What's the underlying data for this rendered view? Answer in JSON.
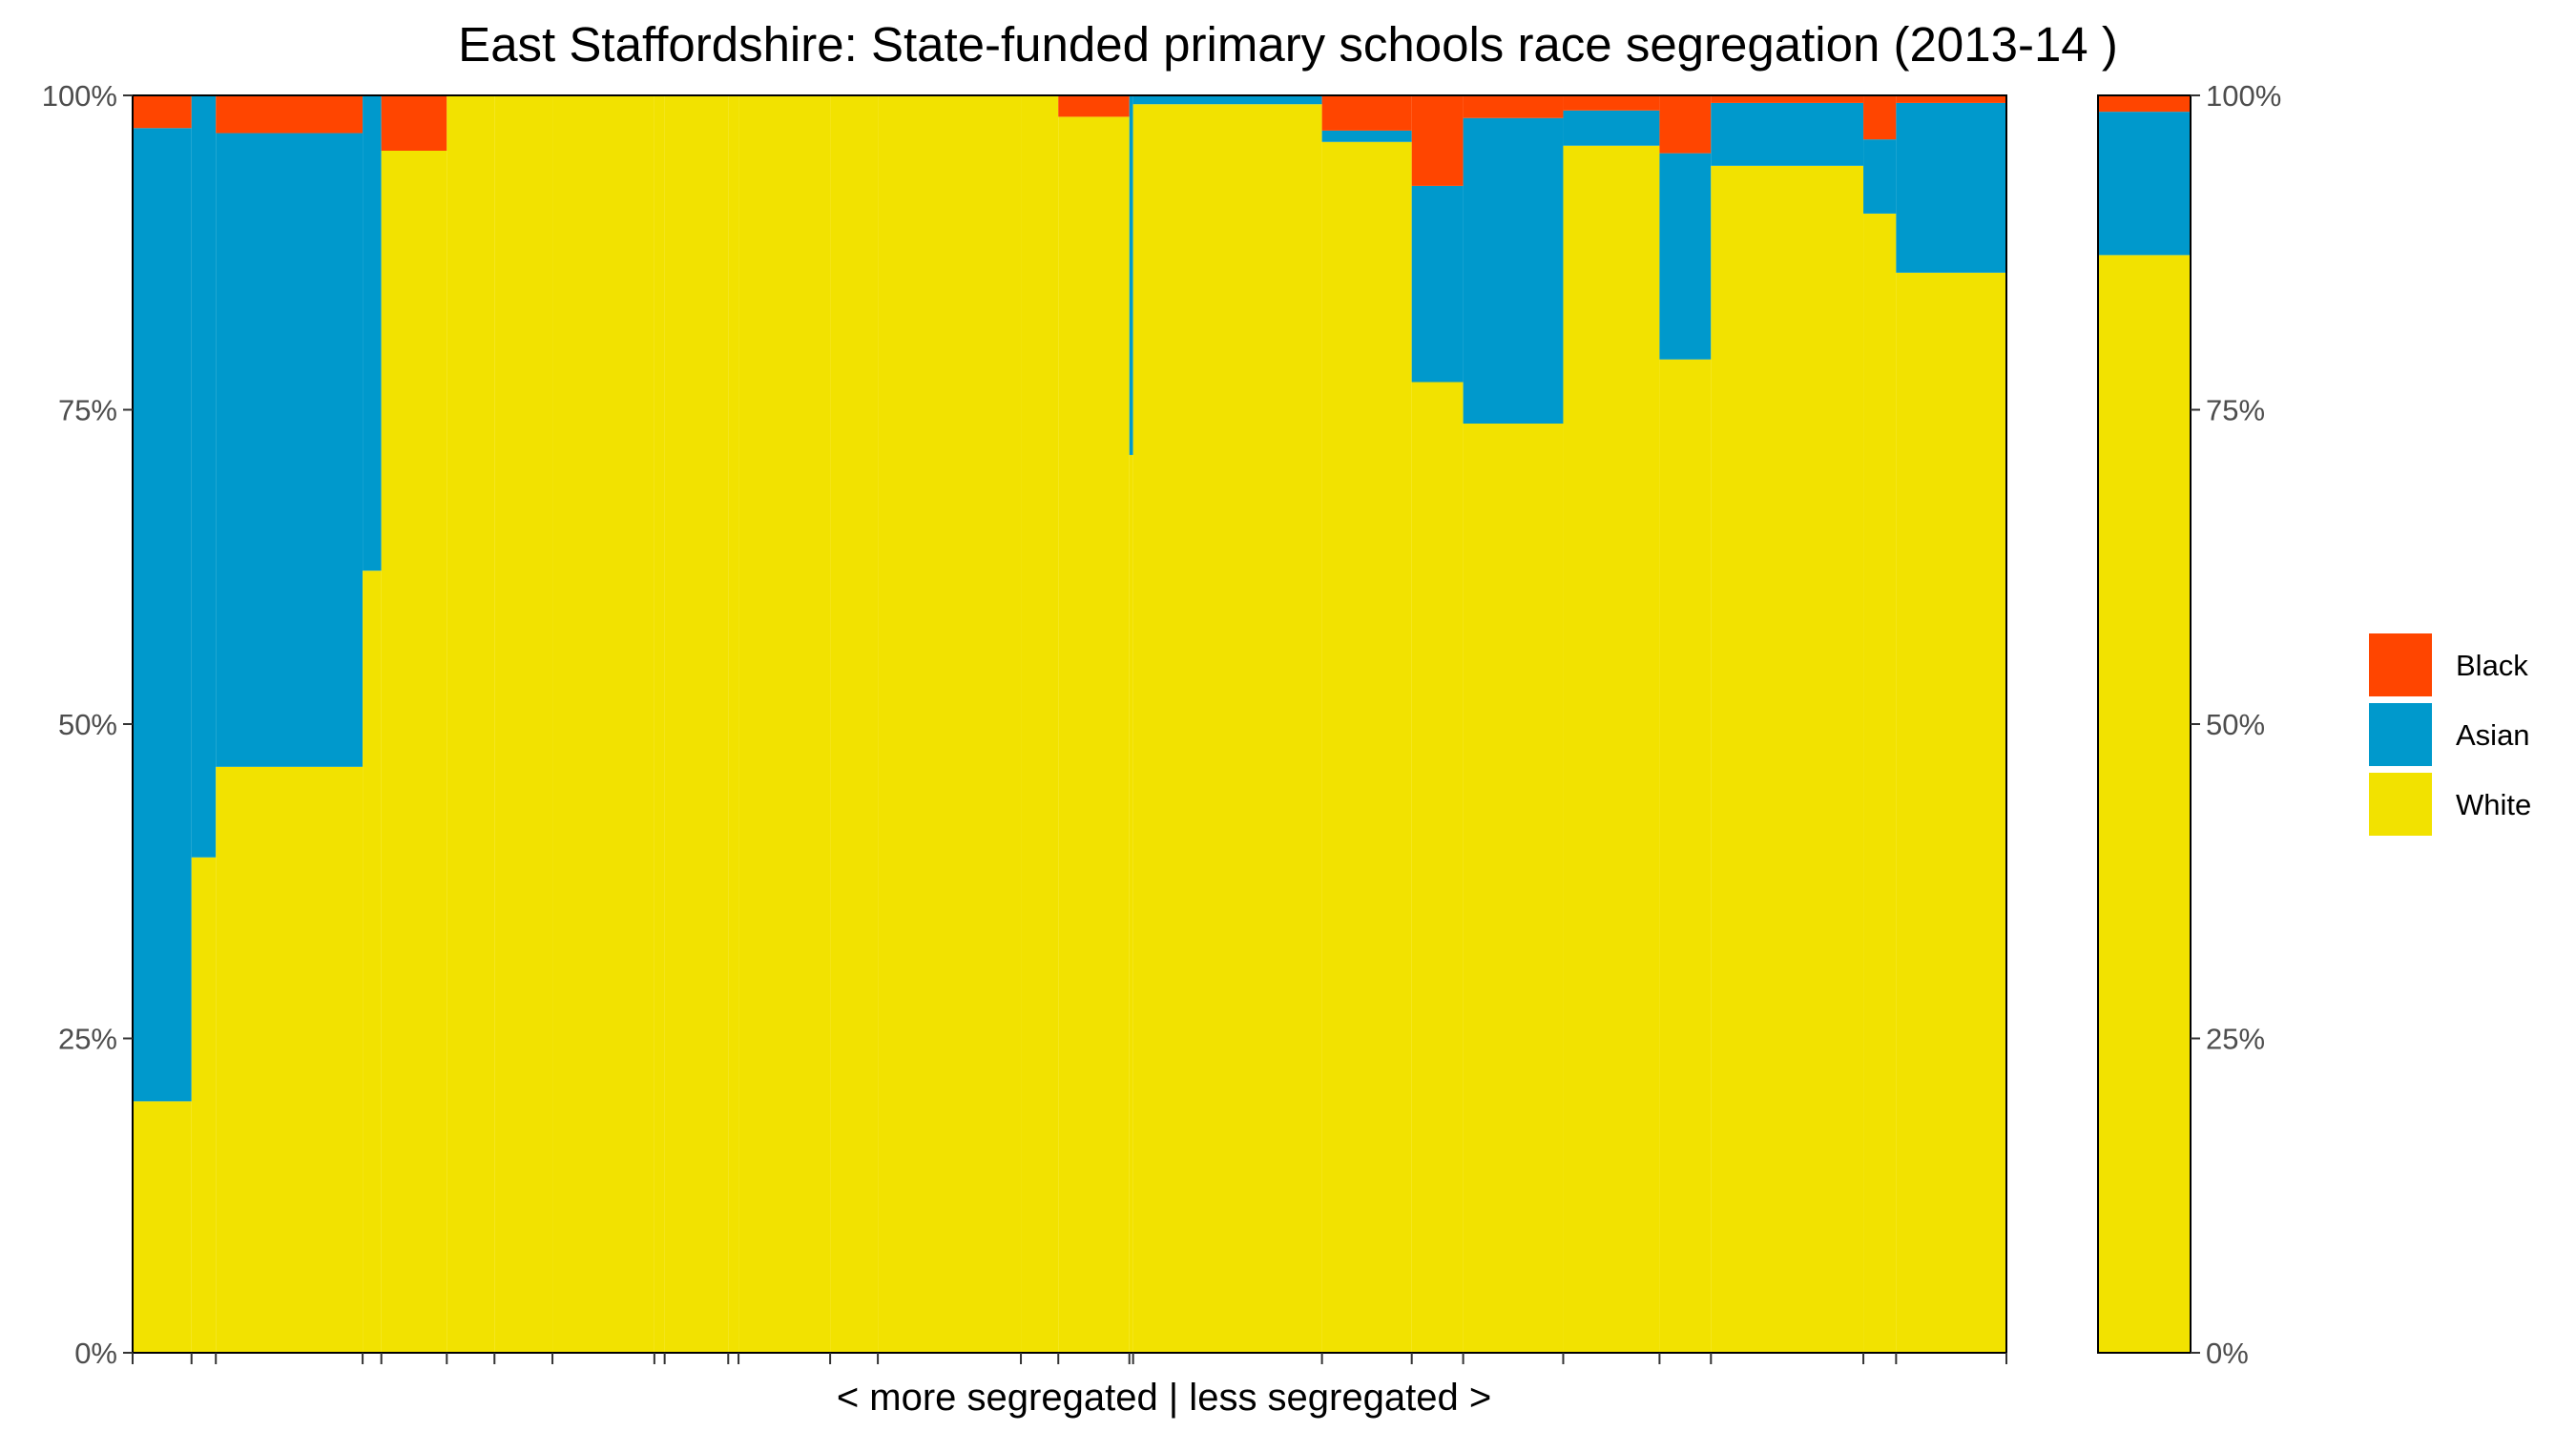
{
  "chart_data": {
    "type": "bar",
    "variant": "stacked-proportional-variable-width",
    "title": "East Staffordshire: State-funded primary schools race segregation (2013-14 )",
    "xlabel": "< more segregated | less segregated >",
    "ylabel": "",
    "ylim": [
      0,
      100
    ],
    "y_tick_labels": [
      "0%",
      "25%",
      "50%",
      "75%",
      "100%"
    ],
    "y_ticks": [
      0,
      25,
      50,
      75,
      100
    ],
    "grid": false,
    "legend_position": "right",
    "colors": {
      "Black": "#ff4500",
      "Asian": "#0099cc",
      "White": "#f2e200"
    },
    "legend": [
      "Black",
      "Asian",
      "White"
    ],
    "schools": [
      {
        "share": 3.15,
        "White": 20.0,
        "Asian": 77.4,
        "Black": 2.6
      },
      {
        "share": 1.3,
        "White": 39.4,
        "Asian": 60.6,
        "Black": 0.0
      },
      {
        "share": 7.85,
        "White": 46.6,
        "Asian": 50.4,
        "Black": 3.0
      },
      {
        "share": 1.0,
        "White": 62.2,
        "Asian": 37.8,
        "Black": 0.0
      },
      {
        "share": 3.5,
        "White": 95.6,
        "Asian": 0.0,
        "Black": 4.4
      },
      {
        "share": 2.55,
        "White": 100,
        "Asian": 0,
        "Black": 0
      },
      {
        "share": 3.1,
        "White": 100,
        "Asian": 0,
        "Black": 0
      },
      {
        "share": 5.45,
        "White": 100,
        "Asian": 0,
        "Black": 0
      },
      {
        "share": 0.55,
        "White": 100,
        "Asian": 0,
        "Black": 0
      },
      {
        "share": 3.4,
        "White": 100,
        "Asian": 0,
        "Black": 0
      },
      {
        "share": 0.55,
        "White": 100,
        "Asian": 0,
        "Black": 0
      },
      {
        "share": 4.9,
        "White": 100,
        "Asian": 0,
        "Black": 0
      },
      {
        "share": 2.55,
        "White": 100,
        "Asian": 0,
        "Black": 0
      },
      {
        "share": 7.65,
        "White": 100,
        "Asian": 0,
        "Black": 0
      },
      {
        "share": 2.0,
        "White": 100,
        "Asian": 0,
        "Black": 0
      },
      {
        "share": 3.8,
        "White": 98.3,
        "Asian": 0.0,
        "Black": 1.7
      },
      {
        "share": 0.2,
        "White": 71.4,
        "Asian": 28.6,
        "Black": 0.0
      },
      {
        "share": 10.1,
        "White": 99.3,
        "Asian": 0.7,
        "Black": 0.0
      },
      {
        "share": 4.8,
        "White": 96.3,
        "Asian": 0.9,
        "Black": 2.8
      },
      {
        "share": 2.75,
        "White": 77.2,
        "Asian": 15.6,
        "Black": 7.2
      },
      {
        "share": 5.35,
        "White": 73.9,
        "Asian": 24.3,
        "Black": 1.8
      },
      {
        "share": 5.15,
        "White": 96.0,
        "Asian": 2.8,
        "Black": 1.2
      },
      {
        "share": 2.75,
        "White": 79.0,
        "Asian": 16.4,
        "Black": 4.6
      },
      {
        "share": 8.15,
        "White": 94.4,
        "Asian": 5.0,
        "Black": 0.6
      },
      {
        "share": 1.75,
        "White": 90.6,
        "Asian": 5.9,
        "Black": 3.5
      },
      {
        "share": 5.9,
        "White": 85.9,
        "Asian": 13.5,
        "Black": 0.6
      }
    ],
    "summary_bar": {
      "White": 87.3,
      "Asian": 11.4,
      "Black": 1.3
    }
  }
}
